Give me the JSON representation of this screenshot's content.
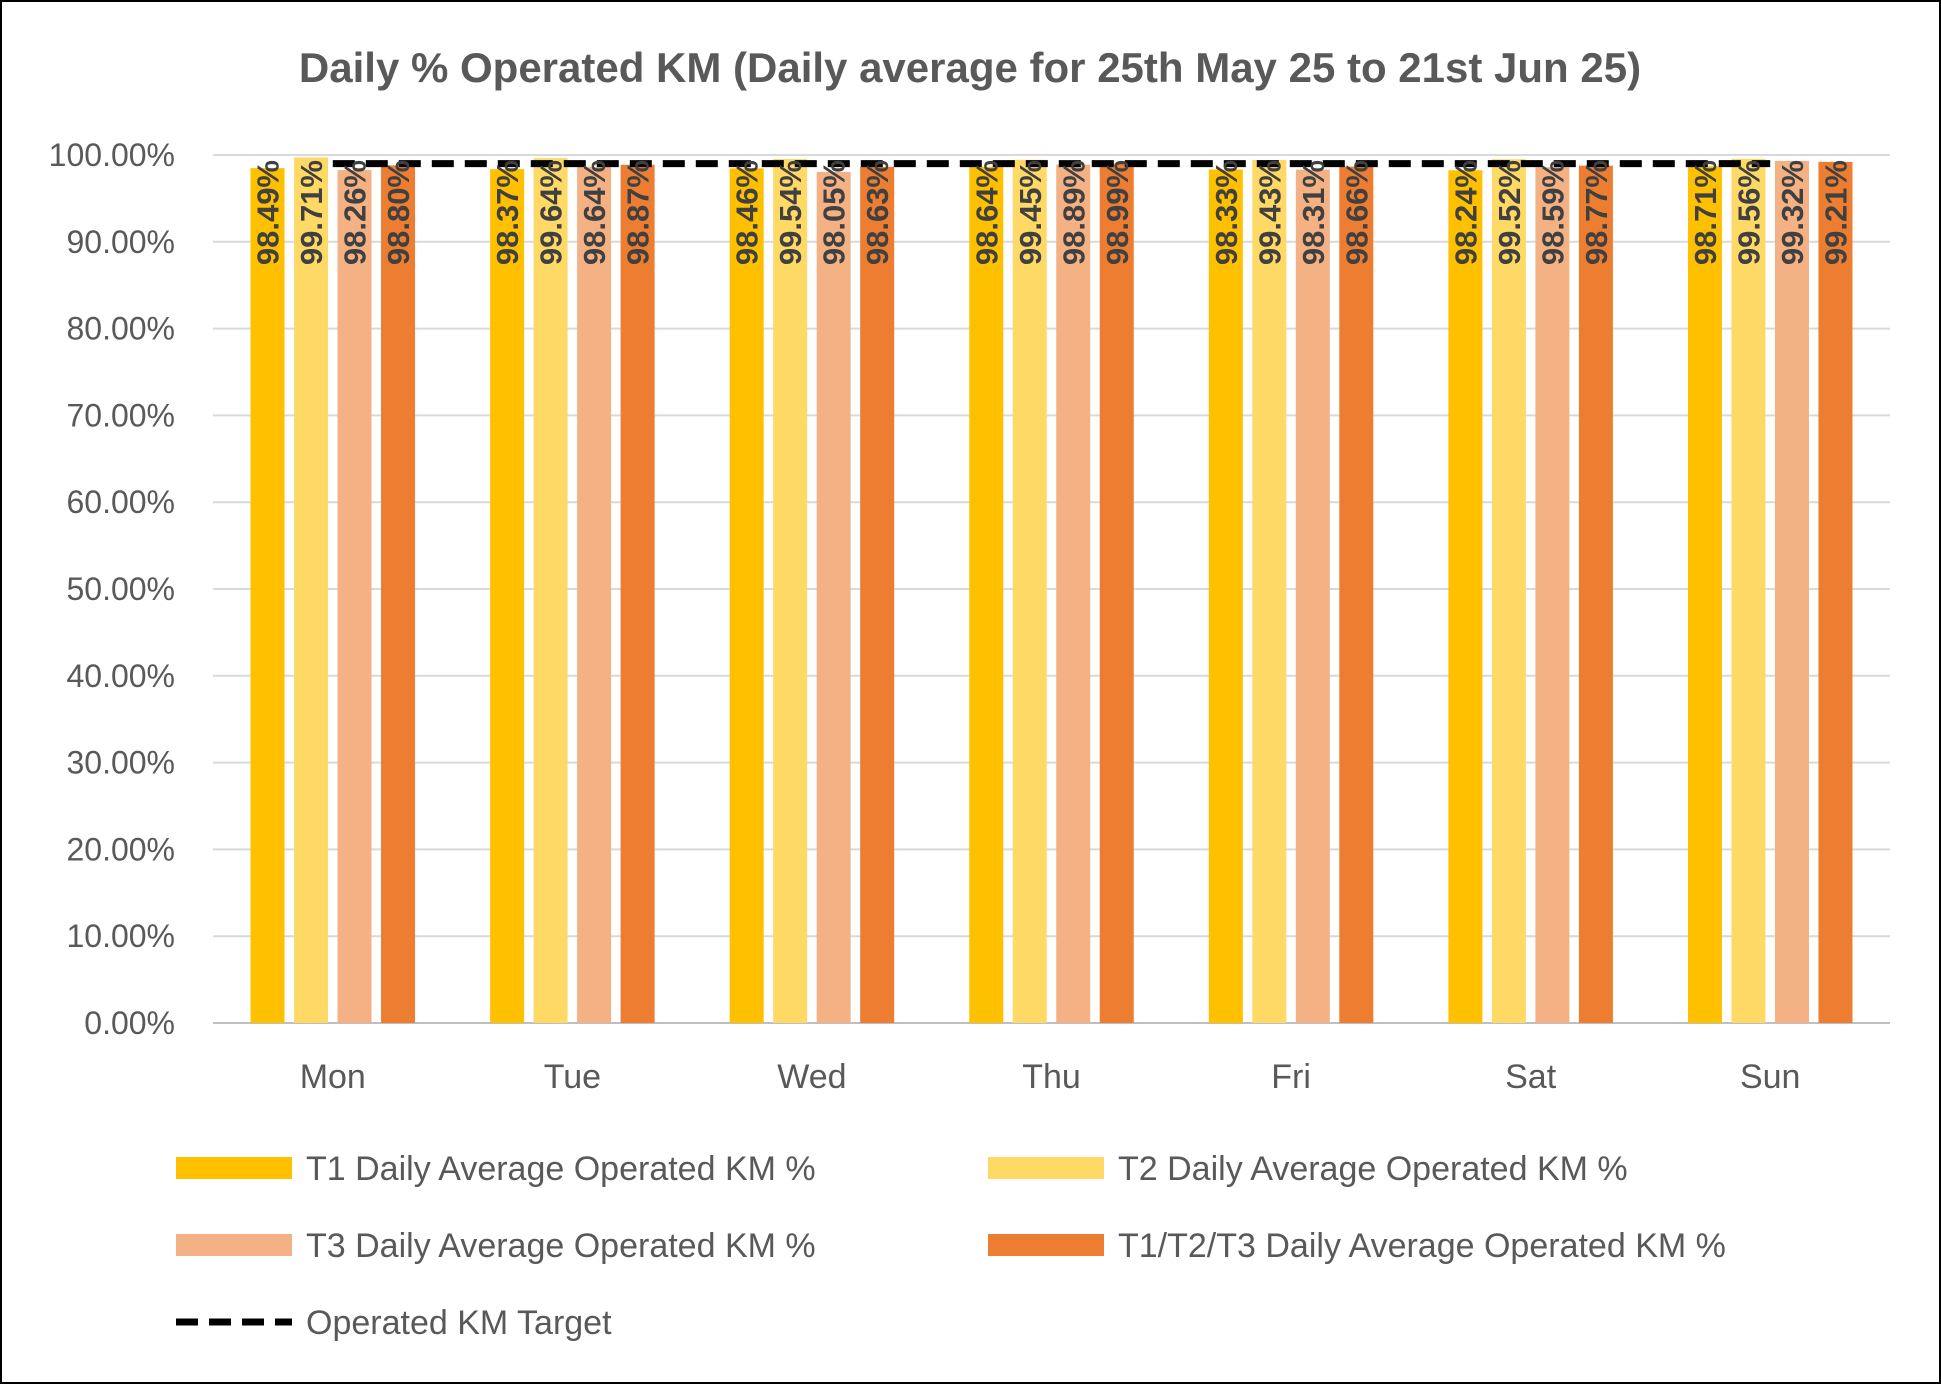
{
  "chart_data": {
    "type": "bar",
    "title": "Daily % Operated KM (Daily average for 25th May 25 to 21st Jun 25)",
    "xlabel": "",
    "ylabel": "",
    "categories": [
      "Mon",
      "Tue",
      "Wed",
      "Thu",
      "Fri",
      "Sat",
      "Sun"
    ],
    "ylim": [
      0,
      100
    ],
    "yticks": [
      0,
      10,
      20,
      30,
      40,
      50,
      60,
      70,
      80,
      90,
      100
    ],
    "ytick_labels": [
      "0.00%",
      "10.00%",
      "20.00%",
      "30.00%",
      "40.00%",
      "50.00%",
      "60.00%",
      "70.00%",
      "80.00%",
      "90.00%",
      "100.00%"
    ],
    "grid": true,
    "legend_position": "bottom",
    "series": [
      {
        "name": "T1 Daily Average Operated KM %",
        "color": "#FFC000",
        "values": [
          98.49,
          98.37,
          98.46,
          98.64,
          98.33,
          98.24,
          98.71
        ],
        "labels": [
          "98.49%",
          "98.37%",
          "98.46%",
          "98.64%",
          "98.33%",
          "98.24%",
          "98.71%"
        ]
      },
      {
        "name": "T2 Daily Average Operated KM %",
        "color": "#FFD966",
        "values": [
          99.71,
          99.64,
          99.54,
          99.45,
          99.43,
          99.52,
          99.56
        ],
        "labels": [
          "99.71%",
          "99.64%",
          "99.54%",
          "99.45%",
          "99.43%",
          "99.52%",
          "99.56%"
        ]
      },
      {
        "name": "T3 Daily Average Operated KM %",
        "color": "#F4B183",
        "values": [
          98.26,
          98.64,
          98.05,
          98.89,
          98.31,
          98.59,
          99.32
        ],
        "labels": [
          "98.26%",
          "98.64%",
          "98.05%",
          "98.89%",
          "98.31%",
          "98.59%",
          "99.32%"
        ]
      },
      {
        "name": "T1/T2/T3 Daily Average Operated KM %",
        "color": "#ED7D31",
        "values": [
          98.8,
          98.87,
          98.63,
          98.99,
          98.66,
          98.77,
          99.21
        ],
        "labels": [
          "98.80%",
          "98.87%",
          "98.63%",
          "98.99%",
          "98.66%",
          "98.77%",
          "99.21%"
        ]
      }
    ],
    "target": {
      "name": "Operated KM Target",
      "value": 99,
      "color": "#000000",
      "style": "dashed"
    }
  }
}
